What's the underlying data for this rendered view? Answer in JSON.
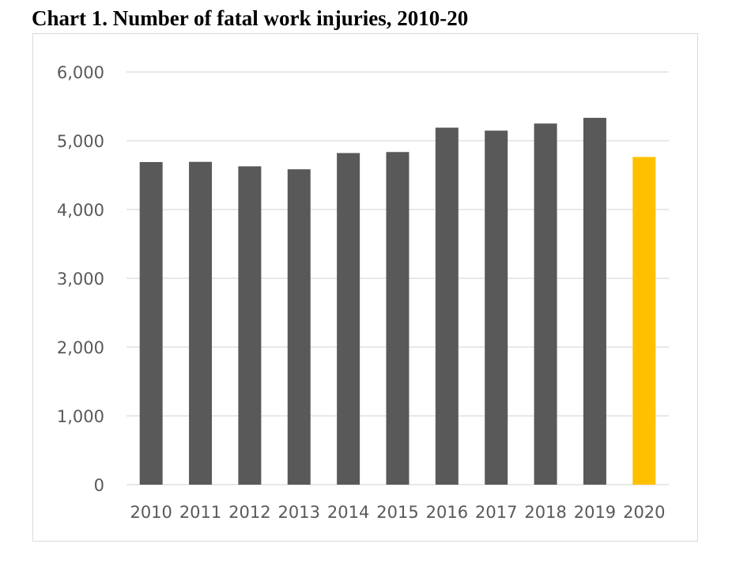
{
  "chart_data": {
    "type": "bar",
    "title": "Chart 1. Number of fatal work injuries, 2010-20",
    "xlabel": "",
    "ylabel": "",
    "categories": [
      "2010",
      "2011",
      "2012",
      "2013",
      "2014",
      "2015",
      "2016",
      "2017",
      "2018",
      "2019",
      "2020"
    ],
    "values": [
      4690,
      4693,
      4628,
      4585,
      4821,
      4836,
      5190,
      5147,
      5250,
      5333,
      4764
    ],
    "ylim": [
      0,
      6000
    ],
    "yticks": [
      0,
      1000,
      2000,
      3000,
      4000,
      5000,
      6000
    ],
    "ytick_labels": [
      "0",
      "1,000",
      "2,000",
      "3,000",
      "4,000",
      "5,000",
      "6,000"
    ],
    "grid": true,
    "legend": "none",
    "colors": {
      "default": "#595959",
      "highlight": "#ffc000",
      "grid": "#d9d9d9"
    },
    "highlight_category": "2020"
  }
}
